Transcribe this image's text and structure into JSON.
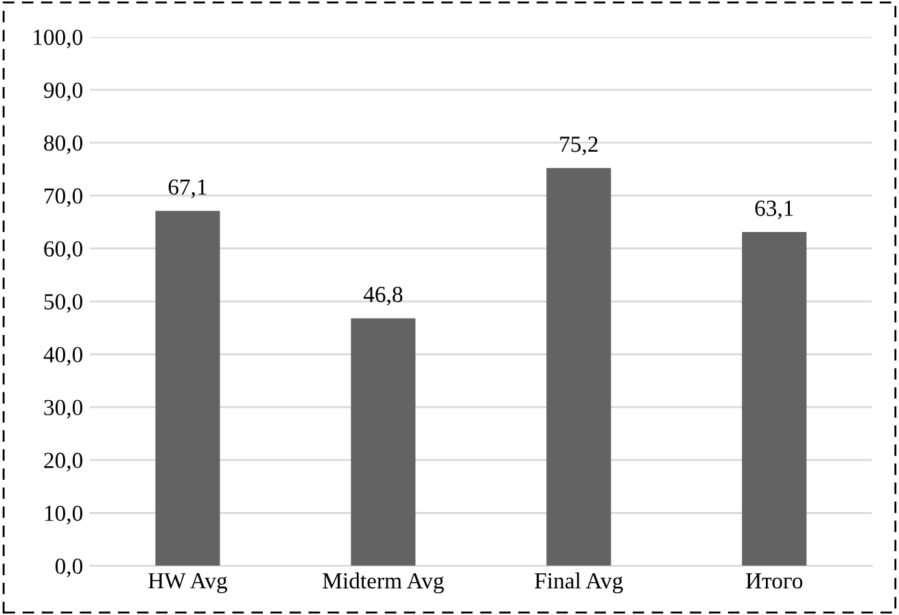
{
  "chart_data": {
    "type": "bar",
    "categories": [
      "HW Avg",
      "Midterm Avg",
      "Final Avg",
      "Итого"
    ],
    "values": [
      67.1,
      46.8,
      75.2,
      63.1
    ],
    "value_labels": [
      "67,1",
      "46,8",
      "75,2",
      "63,1"
    ],
    "color": "#636363",
    "ylim": [
      0,
      100
    ],
    "yticks": [
      {
        "value": 0,
        "label": "0,0"
      },
      {
        "value": 10,
        "label": "10,0"
      },
      {
        "value": 20,
        "label": "20,0"
      },
      {
        "value": 30,
        "label": "30,0"
      },
      {
        "value": 40,
        "label": "40,0"
      },
      {
        "value": 50,
        "label": "50,0"
      },
      {
        "value": 60,
        "label": "60,0"
      },
      {
        "value": 70,
        "label": "70,0"
      },
      {
        "value": 80,
        "label": "80,0"
      },
      {
        "value": 90,
        "label": "90,0"
      },
      {
        "value": 100,
        "label": "100,0"
      }
    ],
    "grid": "y"
  }
}
